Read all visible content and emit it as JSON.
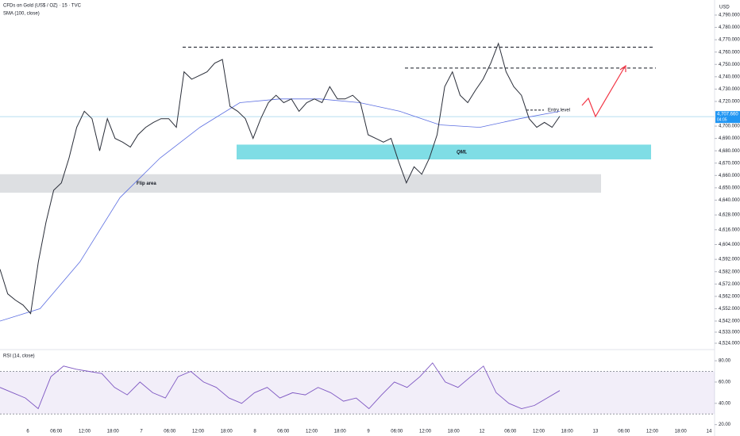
{
  "header": {
    "title": "CFDs on Gold (US$ / OZ) · 15 · TVC",
    "currency": "USD"
  },
  "chart_data": {
    "type": "line",
    "price": {
      "color": "#2a2e39",
      "values": [
        4584,
        4564,
        4559,
        4555,
        4548,
        4590,
        4622,
        4648,
        4654,
        4674,
        4699,
        4712,
        4706,
        4680,
        4706,
        4690,
        4687,
        4683,
        4693,
        4699,
        4703,
        4706,
        4706,
        4699,
        4744,
        4738,
        4741,
        4744,
        4751,
        4754,
        4716,
        4712,
        4706,
        4690,
        4706,
        4719,
        4725,
        4719,
        4722,
        4712,
        4719,
        4722,
        4719,
        4732,
        4722,
        4722,
        4725,
        4719,
        4693,
        4690,
        4687,
        4690,
        4671,
        4654,
        4667,
        4661,
        4674,
        4693,
        4732,
        4744,
        4725,
        4719,
        4729,
        4738,
        4751,
        4767,
        4744,
        4732,
        4725,
        4706,
        4699,
        4703,
        4699,
        4708
      ]
    },
    "sma": {
      "name": "SMA (100, close)",
      "color": "#5b6ee1",
      "values": [
        4542,
        4552,
        4590,
        4642,
        4674,
        4699,
        4719,
        4722,
        4722,
        4719,
        4712,
        4701,
        4699,
        4706,
        4712
      ]
    },
    "ylim": [
      4524,
      4790
    ],
    "yticks": [
      {
        "value": 4790,
        "label": "4,790.000"
      },
      {
        "value": 4780,
        "label": "4,780.000"
      },
      {
        "value": 4770,
        "label": "4,770.000"
      },
      {
        "value": 4760,
        "label": "4,760.000"
      },
      {
        "value": 4750,
        "label": "4,750.000"
      },
      {
        "value": 4740,
        "label": "4,740.000"
      },
      {
        "value": 4730,
        "label": "4,730.000"
      },
      {
        "value": 4720,
        "label": "4,720.000"
      },
      {
        "value": 4700,
        "label": "4,700.000"
      },
      {
        "value": 4690,
        "label": "4,690.000"
      },
      {
        "value": 4680,
        "label": "4,680.000"
      },
      {
        "value": 4670,
        "label": "4,670.000"
      },
      {
        "value": 4660,
        "label": "4,660.000"
      },
      {
        "value": 4650,
        "label": "4,650.000"
      },
      {
        "value": 4640,
        "label": "4,640.000"
      },
      {
        "value": 4628,
        "label": "4,628.000"
      },
      {
        "value": 4616,
        "label": "4,616.000"
      },
      {
        "value": 4604,
        "label": "4,604.000"
      },
      {
        "value": 4592,
        "label": "4,592.000"
      },
      {
        "value": 4582,
        "label": "4,582.000"
      },
      {
        "value": 4572,
        "label": "4,572.000"
      },
      {
        "value": 4562,
        "label": "4,562.000"
      },
      {
        "value": 4552,
        "label": "4,552.000"
      },
      {
        "value": 4542,
        "label": "4,542.000"
      },
      {
        "value": 4533,
        "label": "4,533.000"
      },
      {
        "value": 4524,
        "label": "4,524.000"
      }
    ],
    "last_price": {
      "value": 4707.66,
      "label": "4,707.660",
      "sub": "04:05"
    },
    "x_labels": [
      "6",
      "06:00",
      "12:00",
      "18:00",
      "7",
      "06:00",
      "12:00",
      "18:00",
      "8",
      "06:00",
      "12:00",
      "18:00",
      "9",
      "06:00",
      "12:00",
      "18:00",
      "12",
      "06:00",
      "12:00",
      "18:00",
      "13",
      "06:00",
      "12:00",
      "18:00",
      "14"
    ],
    "levels": [
      4764,
      4747
    ],
    "zones": [
      {
        "label": "QML",
        "low": 4673,
        "high": 4685,
        "color": "#7fdde5"
      },
      {
        "label": "Flip area",
        "low": 4646,
        "high": 4661,
        "color": "#d9dbdf"
      }
    ],
    "entry": {
      "label": "Entry level",
      "value": 4713
    },
    "rsi": {
      "name": "RSI (14, close)",
      "color": "#7e57c2",
      "ylim": [
        19,
        89
      ],
      "yticks": [
        {
          "value": 80,
          "label": "80.00"
        },
        {
          "value": 60,
          "label": "60.00"
        },
        {
          "value": 40,
          "label": "40.00"
        },
        {
          "value": 20,
          "label": "20.00"
        }
      ],
      "band": [
        30,
        70
      ],
      "values": [
        55,
        50,
        45,
        35,
        65,
        75,
        72,
        70,
        68,
        55,
        48,
        60,
        50,
        45,
        65,
        70,
        60,
        55,
        45,
        40,
        50,
        55,
        45,
        50,
        48,
        55,
        50,
        42,
        45,
        35,
        48,
        60,
        55,
        65,
        78,
        60,
        55,
        65,
        75,
        50,
        40,
        35,
        38,
        45,
        52
      ]
    }
  }
}
